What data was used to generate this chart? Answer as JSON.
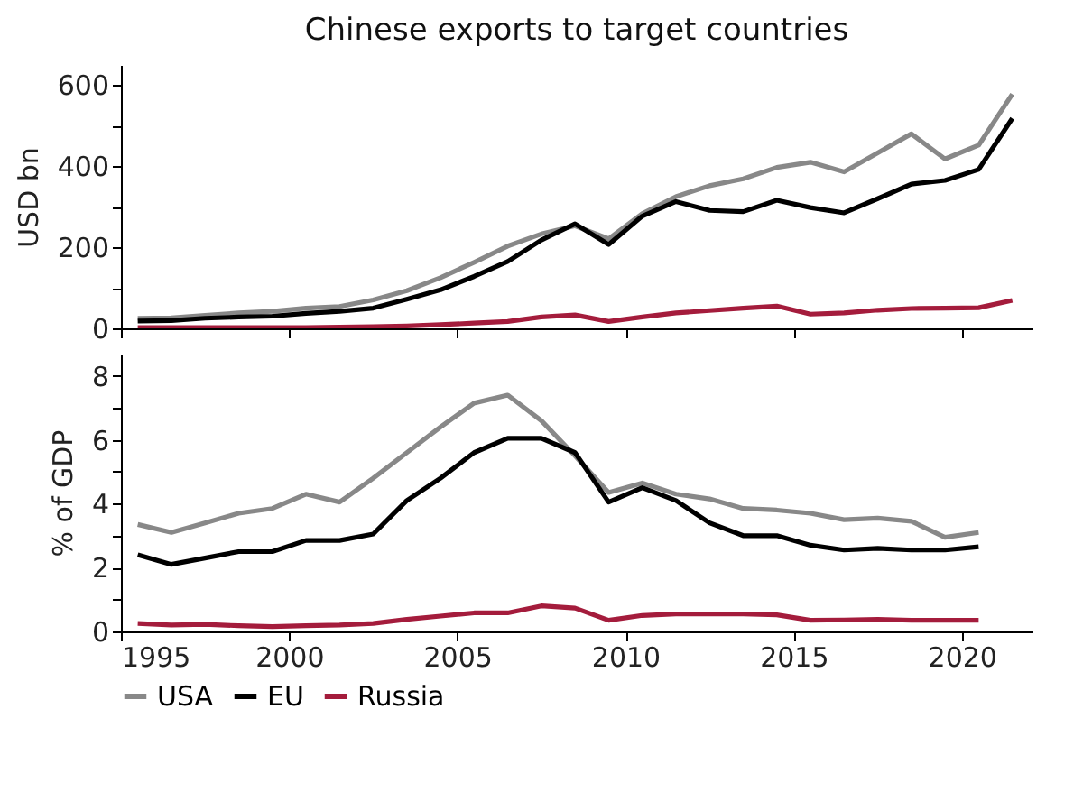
{
  "chart_data": [
    {
      "type": "line",
      "title": "Chinese exports to target countries",
      "ylabel": "USD bn",
      "xlim": [
        1995,
        2022.1
      ],
      "xticks": [
        1995,
        2000,
        2005,
        2010,
        2015,
        2020
      ],
      "ylim": [
        0,
        650
      ],
      "yticks": [
        0,
        {
          "value": 100,
          "label": null
        },
        200,
        {
          "value": 300,
          "label": null
        },
        400,
        {
          "value": 500,
          "label": null
        },
        600
      ],
      "tick_labels": "y",
      "grid": false,
      "legend": "bottom left",
      "line_style": "solid",
      "marker": "none",
      "x": [
        1995.5,
        1996.5,
        1997.5,
        1998.5,
        1999.5,
        2000.5,
        2001.5,
        2002.5,
        2003.5,
        2004.5,
        2005.5,
        2006.5,
        2007.5,
        2008.5,
        2009.5,
        2010.5,
        2011.5,
        2012.5,
        2013.5,
        2014.5,
        2015.5,
        2016.5,
        2017.5,
        2018.5,
        2019.5,
        2020.5,
        2021.5
      ],
      "series": [
        {
          "name": "USA",
          "color": "#888888",
          "values": [
            25,
            26,
            32,
            38,
            42,
            50,
            54,
            70,
            93,
            125,
            163,
            203,
            233,
            253,
            221,
            283,
            325,
            352,
            369,
            397,
            410,
            386,
            433,
            480,
            418,
            452,
            578
          ]
        },
        {
          "name": "EU",
          "color": "#000000",
          "values": [
            18,
            19,
            25,
            28,
            30,
            37,
            42,
            50,
            72,
            95,
            128,
            165,
            218,
            258,
            207,
            277,
            313,
            291,
            288,
            316,
            298,
            285,
            320,
            356,
            365,
            392,
            518
          ]
        },
        {
          "name": "Russia",
          "color": "#a41c3c",
          "values": [
            2,
            2,
            2,
            2,
            2,
            2,
            3,
            4,
            6,
            9,
            13,
            17,
            28,
            33,
            17,
            28,
            38,
            44,
            50,
            55,
            35,
            38,
            45,
            49,
            50,
            51,
            69
          ]
        }
      ]
    },
    {
      "type": "line",
      "ylabel": "% of GDP",
      "xlim": [
        1995,
        2022.1
      ],
      "xticks": [
        1995,
        2000,
        2005,
        2010,
        2015,
        2020
      ],
      "ylim": [
        0,
        8.7
      ],
      "yticks": [
        0,
        {
          "value": 1,
          "label": null
        },
        2,
        {
          "value": 3,
          "label": null
        },
        4,
        {
          "value": 5,
          "label": null
        },
        6,
        {
          "value": 7,
          "label": null
        },
        8
      ],
      "grid": false,
      "legend": "bottom left",
      "line_style": "solid",
      "marker": "none",
      "x": [
        1995.5,
        1996.5,
        1997.5,
        1998.5,
        1999.5,
        2000.5,
        2001.5,
        2002.5,
        2003.5,
        2004.5,
        2005.5,
        2006.5,
        2007.5,
        2008.5,
        2009.5,
        2010.5,
        2011.5,
        2012.5,
        2013.5,
        2014.5,
        2015.5,
        2016.5,
        2017.5,
        2018.5,
        2019.5,
        2020.5
      ],
      "series": [
        {
          "name": "USA",
          "color": "#888888",
          "values": [
            3.35,
            3.1,
            3.4,
            3.7,
            3.85,
            4.3,
            4.05,
            4.8,
            5.6,
            6.4,
            7.15,
            7.4,
            6.6,
            5.5,
            4.35,
            4.65,
            4.3,
            4.15,
            3.85,
            3.8,
            3.7,
            3.5,
            3.55,
            3.45,
            2.95,
            3.1
          ]
        },
        {
          "name": "EU",
          "color": "#000000",
          "values": [
            2.4,
            2.1,
            2.3,
            2.5,
            2.5,
            2.85,
            2.85,
            3.05,
            4.1,
            4.8,
            5.6,
            6.05,
            6.05,
            5.6,
            4.05,
            4.5,
            4.1,
            3.4,
            3.0,
            3.0,
            2.7,
            2.55,
            2.6,
            2.55,
            2.55,
            2.65
          ]
        },
        {
          "name": "Russia",
          "color": "#a41c3c",
          "values": [
            0.25,
            0.2,
            0.22,
            0.18,
            0.15,
            0.18,
            0.2,
            0.25,
            0.38,
            0.48,
            0.58,
            0.58,
            0.8,
            0.73,
            0.35,
            0.5,
            0.55,
            0.55,
            0.55,
            0.52,
            0.35,
            0.36,
            0.38,
            0.35,
            0.35,
            0.35
          ]
        }
      ]
    }
  ]
}
